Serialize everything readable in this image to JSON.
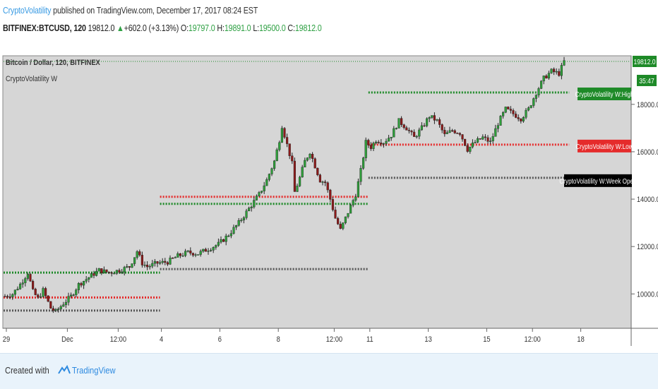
{
  "header": {
    "author": "CryptoVolatility",
    "published": "published on TradingView.com, December 17, 2017 08:24 EST"
  },
  "ticker": {
    "symbol": "BITFINEX:BTCUSD, 120",
    "last": "19812.0",
    "change": "+602.0 (+3.13%)",
    "open_label": "O:",
    "open": "19797.0",
    "high_label": "H:",
    "high": "19891.0",
    "low_label": "L:",
    "low": "19500.0",
    "close_label": "C:",
    "close": "19812.0"
  },
  "chart_data": {
    "type": "candlestick",
    "title": "Bitcoin / Dollar, 120, BITFINEX",
    "indicator": "CryptoVolatility W",
    "y_ticks": [
      "10000.0",
      "12000.0",
      "14000.0",
      "16000.0",
      "18000.0"
    ],
    "x_ticks": [
      "29",
      "Dec",
      "12:00",
      "4",
      "6",
      "8",
      "12:00",
      "11",
      "13",
      "15",
      "12:00",
      "18"
    ],
    "ylim": [
      8550,
      20050
    ],
    "last_price": "19812.0",
    "countdown": "35:47",
    "path_points": [
      [
        0,
        9900
      ],
      [
        3,
        10000
      ],
      [
        6,
        10400
      ],
      [
        9,
        10900
      ],
      [
        11,
        10100
      ],
      [
        13,
        9800
      ],
      [
        15,
        10150
      ],
      [
        18,
        9400
      ],
      [
        20,
        9250
      ],
      [
        23,
        9600
      ],
      [
        26,
        9900
      ],
      [
        29,
        10400
      ],
      [
        33,
        10700
      ],
      [
        37,
        11000
      ],
      [
        41,
        10900
      ],
      [
        45,
        11000
      ],
      [
        49,
        11150
      ],
      [
        52,
        11800
      ],
      [
        54,
        11300
      ],
      [
        56,
        11150
      ],
      [
        60,
        11300
      ],
      [
        64,
        11350
      ],
      [
        68,
        11600
      ],
      [
        72,
        11750
      ],
      [
        76,
        11700
      ],
      [
        80,
        11900
      ],
      [
        84,
        12100
      ],
      [
        88,
        12500
      ],
      [
        92,
        13000
      ],
      [
        96,
        13600
      ],
      [
        100,
        14200
      ],
      [
        103,
        14800
      ],
      [
        106,
        15600
      ],
      [
        108,
        16500
      ],
      [
        109,
        17100
      ],
      [
        111,
        16300
      ],
      [
        113,
        15500
      ],
      [
        114,
        14300
      ],
      [
        116,
        14900
      ],
      [
        118,
        15600
      ],
      [
        120,
        16000
      ],
      [
        122,
        15400
      ],
      [
        124,
        14800
      ],
      [
        126,
        14700
      ],
      [
        128,
        14000
      ],
      [
        130,
        13200
      ],
      [
        132,
        12700
      ],
      [
        134,
        13200
      ],
      [
        136,
        13700
      ],
      [
        138,
        14200
      ],
      [
        140,
        15200
      ],
      [
        142,
        16400
      ],
      [
        144,
        16200
      ],
      [
        146,
        16500
      ],
      [
        149,
        16400
      ],
      [
        152,
        16700
      ],
      [
        155,
        17300
      ],
      [
        158,
        17000
      ],
      [
        161,
        16600
      ],
      [
        164,
        17000
      ],
      [
        167,
        17500
      ],
      [
        170,
        17300
      ],
      [
        173,
        16700
      ],
      [
        176,
        16900
      ],
      [
        179,
        16800
      ],
      [
        182,
        16100
      ],
      [
        185,
        16400
      ],
      [
        188,
        16600
      ],
      [
        191,
        16400
      ],
      [
        194,
        17200
      ],
      [
        197,
        17800
      ],
      [
        200,
        17600
      ],
      [
        203,
        17400
      ],
      [
        206,
        17800
      ],
      [
        209,
        18500
      ],
      [
        212,
        19100
      ],
      [
        215,
        19400
      ],
      [
        218,
        19300
      ],
      [
        220,
        19812
      ]
    ],
    "levels": [
      {
        "name": "CryptoVolatility W:High",
        "segments": [
          [
            -2,
            61,
            10900
          ],
          [
            61,
            143,
            13800
          ],
          [
            143,
            222,
            18500
          ]
        ],
        "color": "#1e8a28"
      },
      {
        "name": "CryptoVolatility W:Low",
        "segments": [
          [
            -2,
            61,
            9850
          ],
          [
            61,
            143,
            14100
          ],
          [
            143,
            222,
            16300
          ]
        ],
        "color": "#e52b2b"
      },
      {
        "name": "CryptoVolatility W:Week Open",
        "segments": [
          [
            -2,
            61,
            9300
          ],
          [
            61,
            143,
            11050
          ],
          [
            143,
            222,
            14900
          ]
        ],
        "color": "#555555"
      }
    ],
    "level_labels": [
      {
        "text": "CryptoVolatility W:High",
        "value": 18500,
        "color": "#1e8a28"
      },
      {
        "text": "CryptoVolatility W:Low",
        "value": 16300,
        "color": "#e52b2b"
      },
      {
        "text": "CryptoVolatility W:Week Open",
        "value": 14900,
        "color": "#000000"
      }
    ]
  },
  "footer": {
    "created": "Created with",
    "brand": "TradingView"
  }
}
